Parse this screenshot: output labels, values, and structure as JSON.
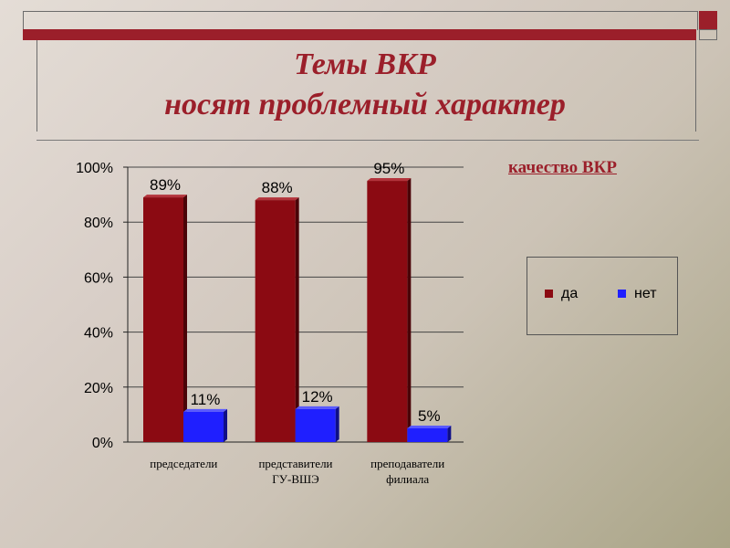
{
  "slide": {
    "title_line1": "Темы ВКР",
    "title_line2": "носят проблемный характер",
    "chart_title": "качество ВКР",
    "accent_color": "#9b1f2a"
  },
  "chart_data": {
    "type": "bar",
    "categories": [
      [
        "председатели"
      ],
      [
        "представители",
        "ГУ-ВШЭ"
      ],
      [
        "преподаватели",
        "филиала"
      ]
    ],
    "series": [
      {
        "name": "да",
        "values": [
          89,
          88,
          95
        ],
        "labels": [
          "89%",
          "88%",
          "95%"
        ],
        "color": "#8b0a12"
      },
      {
        "name": "нет",
        "values": [
          11,
          12,
          5
        ],
        "labels": [
          "11%",
          "12%",
          "5%"
        ],
        "color": "#1f1fff"
      }
    ],
    "ylim": [
      0,
      100
    ],
    "yticks": [
      "0%",
      "20%",
      "40%",
      "60%",
      "80%",
      "100%"
    ],
    "grid": true,
    "legend_position": "right"
  }
}
